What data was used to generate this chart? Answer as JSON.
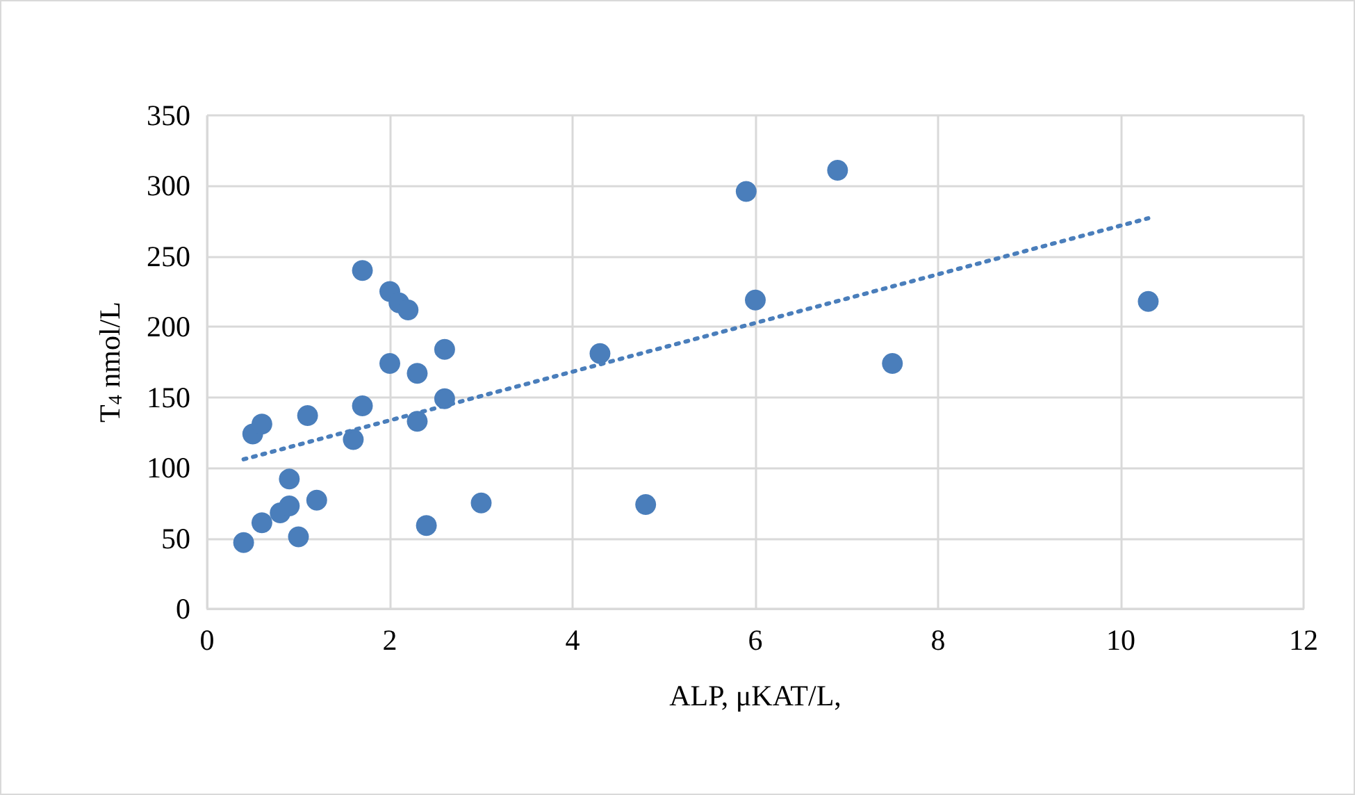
{
  "chart_data": {
    "type": "scatter",
    "xlabel": "ALP, μKAT/L,",
    "ylabel": "T$_{4}$ nmol/L",
    "xlim": [
      0,
      12
    ],
    "xticks": [
      0,
      2,
      4,
      6,
      8,
      10,
      12
    ],
    "ylim": [
      0,
      350
    ],
    "yticks": [
      0,
      50,
      100,
      150,
      200,
      250,
      300,
      350
    ],
    "grid": true,
    "marker": "circle",
    "series": [
      {
        "color": "#4a7ebb",
        "x": [
          0.4,
          0.5,
          0.6,
          0.6,
          0.8,
          0.9,
          0.9,
          1.0,
          1.1,
          1.2,
          1.6,
          1.7,
          1.7,
          2.0,
          2.0,
          2.1,
          2.2,
          2.3,
          2.3,
          2.4,
          2.6,
          2.6,
          3.0,
          4.3,
          4.8,
          5.9,
          6.0,
          6.9,
          7.5,
          10.3
        ],
        "values": [
          47,
          124,
          131,
          61,
          68,
          92,
          73,
          51,
          137,
          77,
          120,
          144,
          240,
          225,
          174,
          217,
          212,
          167,
          133,
          59,
          184,
          149,
          75,
          181,
          74,
          296,
          219,
          311,
          174,
          218
        ]
      },
      {
        "type": "line",
        "color": "#4a7ebb",
        "line_style": "dotted",
        "marker": "none",
        "x": [
          0.4,
          10.3
        ],
        "values": [
          106,
          277
        ]
      }
    ]
  }
}
